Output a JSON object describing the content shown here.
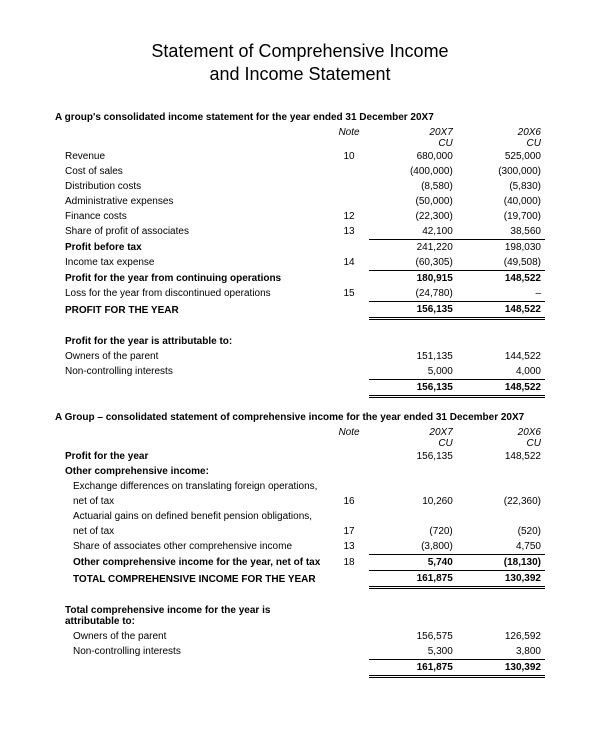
{
  "title_line1": "Statement of Comprehensive Income",
  "title_line2": "and Income Statement",
  "section1": {
    "heading": "A group's consolidated income statement for the year ended 31 December 20X7",
    "columns": {
      "note": "Note",
      "year1": "20X7",
      "year2": "20X6",
      "cu": "CU"
    },
    "rows": [
      {
        "label": "Revenue",
        "note": "10",
        "v1": "680,000",
        "v2": "525,000"
      },
      {
        "label": "Cost of sales",
        "note": "",
        "v1": "(400,000)",
        "v2": "(300,000)"
      },
      {
        "label": "Distribution costs",
        "note": "",
        "v1": "(8,580)",
        "v2": "(5,830)"
      },
      {
        "label": "Administrative expenses",
        "note": "",
        "v1": "(50,000)",
        "v2": "(40,000)"
      },
      {
        "label": "Finance costs",
        "note": "12",
        "v1": "(22,300)",
        "v2": "(19,700)"
      },
      {
        "label": "Share of profit of associates",
        "note": "13",
        "v1": "42,100",
        "v2": "38,560",
        "bb": true
      },
      {
        "label": "Profit before tax",
        "bold": true,
        "note": "",
        "v1": "241,220",
        "v2": "198,030"
      },
      {
        "label": "Income tax expense",
        "note": "14",
        "v1": "(60,305)",
        "v2": "(49,508)",
        "bb": true
      },
      {
        "label": "Profit for the year from continuing operations",
        "bold": true,
        "note": "",
        "v1": "180,915",
        "v2": "148,522",
        "boldvals": true
      },
      {
        "label": "Loss for the year from discontinued operations",
        "note": "15",
        "v1": "(24,780)",
        "v2": "–",
        "bb": true
      },
      {
        "label": "PROFIT FOR THE YEAR",
        "bold": true,
        "note": "",
        "v1": "156,135",
        "v2": "148,522",
        "boldvals": true,
        "dbb": true
      }
    ],
    "attribution": {
      "heading": "Profit for the year is attributable to:",
      "rows": [
        {
          "label": "Owners of the parent",
          "v1": "151,135",
          "v2": "144,522"
        },
        {
          "label": "Non-controlling interests",
          "v1": "5,000",
          "v2": "4,000",
          "bb": true
        },
        {
          "label": "",
          "v1": "156,135",
          "v2": "148,522",
          "boldvals": true,
          "dbb": true
        }
      ]
    }
  },
  "section2": {
    "heading": "A Group – consolidated statement of comprehensive income for the year ended 31 December 20X7",
    "columns": {
      "note": "Note",
      "year1": "20X7",
      "year2": "20X6",
      "cu": "CU"
    },
    "rows": [
      {
        "label": "Profit for the year",
        "bold": true,
        "v1": "156,135",
        "v2": "148,522"
      }
    ],
    "oci_heading": "Other comprehensive income:",
    "oci_rows": [
      {
        "label1": "Exchange differences on translating foreign operations,",
        "label2": "net of tax",
        "note": "16",
        "v1": "10,260",
        "v2": "(22,360)"
      },
      {
        "label1": "Actuarial gains on defined benefit pension obligations,",
        "label2": "net of tax",
        "note": "17",
        "v1": "(720)",
        "v2": "(520)"
      },
      {
        "label": "Share of associates other comprehensive income",
        "note": "13",
        "v1": "(3,800)",
        "v2": "4,750",
        "bb": true
      },
      {
        "label": "Other comprehensive income for the year, net of tax",
        "bold": true,
        "note": "18",
        "v1": "5,740",
        "v2": "(18,130)",
        "boldvals": true,
        "bb": true
      },
      {
        "label": "TOTAL COMPREHENSIVE INCOME FOR THE YEAR",
        "bold": true,
        "v1": "161,875",
        "v2": "130,392",
        "boldvals": true,
        "dbb": true
      }
    ],
    "attribution": {
      "heading": "Total comprehensive income for the year is attributable to:",
      "rows": [
        {
          "label": "Owners of the parent",
          "v1": "156,575",
          "v2": "126,592"
        },
        {
          "label": "Non-controlling interests",
          "v1": "5,300",
          "v2": "3,800",
          "bb": true
        },
        {
          "label": "",
          "v1": "161,875",
          "v2": "130,392",
          "boldvals": true,
          "dbb": true
        }
      ]
    }
  }
}
